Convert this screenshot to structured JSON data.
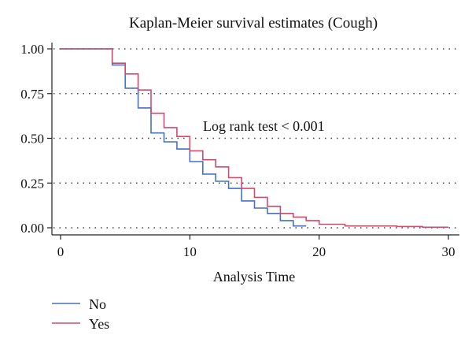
{
  "chart_data": {
    "type": "line",
    "title": "Kaplan-Meier survival estimates (Cough)",
    "xlabel": "Analysis Time",
    "ylabel": "",
    "xlim": [
      0,
      30
    ],
    "ylim": [
      0,
      1
    ],
    "x_ticks": [
      0,
      10,
      20,
      30
    ],
    "y_ticks": [
      "0.00",
      "0.25",
      "0.50",
      "0.75",
      "1.00"
    ],
    "grid": true,
    "legend_position": "bottom-left",
    "annotation": "Log rank test < 0.001",
    "series": [
      {
        "name": "No",
        "color": "#4472c4",
        "x": [
          0,
          4,
          5,
          6,
          7,
          8,
          9,
          10,
          11,
          12,
          13,
          14,
          15,
          16,
          17,
          18,
          19
        ],
        "y": [
          1.0,
          0.91,
          0.78,
          0.67,
          0.53,
          0.48,
          0.44,
          0.37,
          0.3,
          0.26,
          0.22,
          0.15,
          0.11,
          0.08,
          0.04,
          0.01,
          0.01
        ]
      },
      {
        "name": "Yes",
        "color": "#d04a6e",
        "x": [
          0,
          4,
          5,
          6,
          7,
          8,
          9,
          10,
          11,
          12,
          13,
          14,
          15,
          16,
          17,
          18,
          19,
          20,
          22,
          26,
          28,
          30
        ],
        "y": [
          1.0,
          0.92,
          0.86,
          0.77,
          0.64,
          0.56,
          0.51,
          0.43,
          0.38,
          0.34,
          0.28,
          0.22,
          0.17,
          0.12,
          0.08,
          0.06,
          0.04,
          0.02,
          0.01,
          0.007,
          0.003,
          0.003
        ]
      }
    ]
  }
}
